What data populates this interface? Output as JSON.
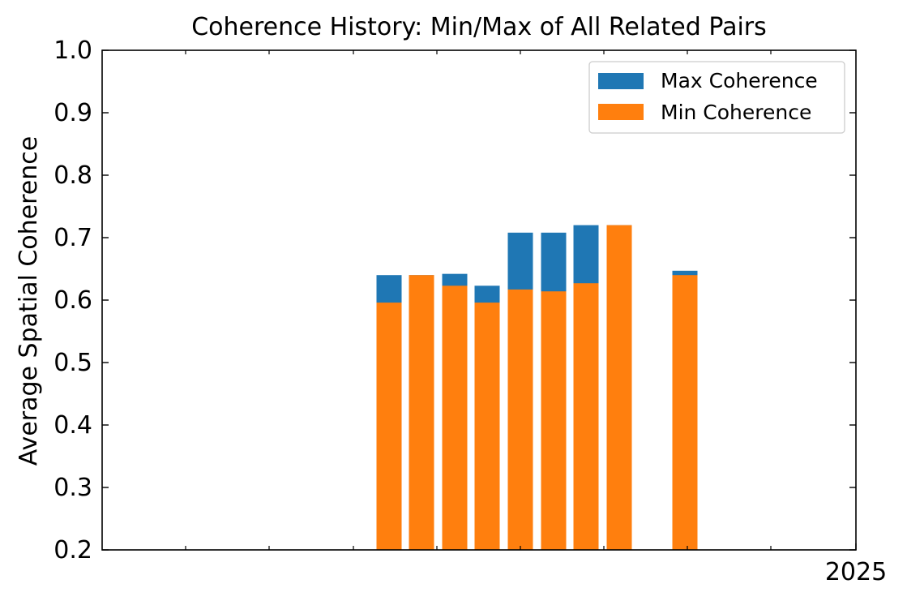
{
  "chart_data": {
    "type": "bar",
    "title": "Coherence History: Min/Max of All Related Pairs",
    "xlabel": "",
    "ylabel": "Average Spatial Coherence",
    "ylim": [
      0.2,
      1.0
    ],
    "yticks": [
      "0.2",
      "0.3",
      "0.4",
      "0.5",
      "0.6",
      "0.7",
      "0.8",
      "0.9",
      "1.0"
    ],
    "xtick_labels": [
      "2025"
    ],
    "grid": false,
    "legend_position": "top-right",
    "colors": {
      "max": "#1f77b4",
      "min": "#ff7f0e"
    },
    "series": [
      {
        "name": "Max Coherence",
        "values": [
          0.64,
          0.64,
          0.642,
          0.623,
          0.708,
          0.708,
          0.72,
          0.72,
          0.647
        ]
      },
      {
        "name": "Min Coherence",
        "values": [
          0.596,
          0.64,
          0.623,
          0.596,
          0.617,
          0.614,
          0.627,
          0.72,
          0.64
        ]
      }
    ]
  }
}
